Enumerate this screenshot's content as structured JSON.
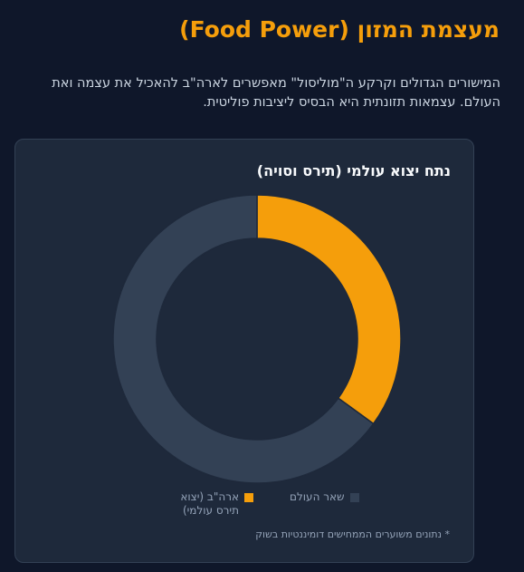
{
  "header": {
    "title": "מעצמת המזון (Food Power)",
    "intro": "המישורים הגדולים וקרקע ה\"מוליסול\" מאפשרים לארה\"ב להאכיל את עצמה ואת העולם. עצמאות תזונתית היא הבסיס ליציבות פוליטית."
  },
  "colors": {
    "usa": "#f59e0b",
    "rest": "#334155",
    "accent": "#f59e0b"
  },
  "chart_data": {
    "type": "pie",
    "title": "נתח יצוא עולמי (תירס וסויה)",
    "categories": [
      "ארה\"ב (יצוא תירס עולמי)",
      "שאר העולם"
    ],
    "values": [
      35,
      65
    ],
    "legend": "bottom",
    "footnote": "* נתונים משוערים הממחישים דומיננטיות בשוק"
  }
}
